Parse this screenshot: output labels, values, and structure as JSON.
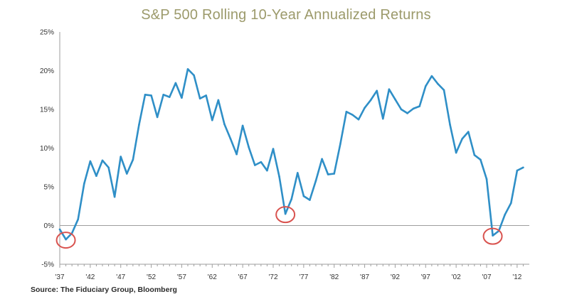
{
  "chart_data": {
    "type": "line",
    "title": "S&P 500 Rolling 10-Year Annualized Returns",
    "source": "Source: The Fiduciary Group, Bloomberg",
    "ylim": [
      -5,
      25
    ],
    "xlim": [
      1937,
      2014
    ],
    "y_ticks": [
      "25%",
      "20%",
      "15%",
      "10%",
      "5%",
      "0%",
      "-5%"
    ],
    "y_tick_values": [
      25,
      20,
      15,
      10,
      5,
      0,
      -5
    ],
    "x_ticks": [
      "'37",
      "'42",
      "'47",
      "'52",
      "'57",
      "'62",
      "'67",
      "'72",
      "'77",
      "'82",
      "'87",
      "'92",
      "'97",
      "'02",
      "'07",
      "'12"
    ],
    "x_tick_values": [
      1937,
      1942,
      1947,
      1952,
      1957,
      1962,
      1967,
      1972,
      1977,
      1982,
      1987,
      1992,
      1997,
      2002,
      2007,
      2012
    ],
    "grid": false,
    "line_color": "#2f8fc7",
    "highlight_color": "#d9534f",
    "series": [
      {
        "x": [
          1937,
          1938,
          1939,
          1940,
          1941,
          1942,
          1943,
          1944,
          1945,
          1946,
          1947,
          1948,
          1949,
          1950,
          1951,
          1952,
          1953,
          1954,
          1955,
          1956,
          1957,
          1958,
          1959,
          1960,
          1961,
          1962,
          1963,
          1964,
          1965,
          1966,
          1967,
          1968,
          1969,
          1970,
          1971,
          1972,
          1973,
          1974,
          1975,
          1976,
          1977,
          1978,
          1979,
          1980,
          1981,
          1982,
          1983,
          1984,
          1985,
          1986,
          1987,
          1988,
          1989,
          1990,
          1991,
          1992,
          1993,
          1994,
          1995,
          1996,
          1997,
          1998,
          1999,
          2000,
          2001,
          2002,
          2003,
          2004,
          2005,
          2006,
          2007,
          2008,
          2009,
          2010,
          2011,
          2012,
          2013
        ],
        "values": [
          -0.5,
          -1.8,
          -1.0,
          0.8,
          5.4,
          8.3,
          6.4,
          8.4,
          7.5,
          3.7,
          8.9,
          6.7,
          8.5,
          13.0,
          16.9,
          16.8,
          14.0,
          16.9,
          16.6,
          18.4,
          16.5,
          20.2,
          19.4,
          16.4,
          16.8,
          13.6,
          16.2,
          13.1,
          11.2,
          9.2,
          12.9,
          10.1,
          7.8,
          8.2,
          7.1,
          9.9,
          6.3,
          1.5,
          3.4,
          6.8,
          3.8,
          3.3,
          5.8,
          8.6,
          6.6,
          6.7,
          10.5,
          14.7,
          14.3,
          13.7,
          15.2,
          16.2,
          17.4,
          13.8,
          17.6,
          16.3,
          15.0,
          14.5,
          15.1,
          15.4,
          18.0,
          19.3,
          18.3,
          17.5,
          13.0,
          9.4,
          11.2,
          12.1,
          9.1,
          8.5,
          6.0,
          -1.3,
          -0.7,
          1.4,
          2.9,
          7.1,
          7.5
        ]
      }
    ],
    "highlights": [
      {
        "x": 1938,
        "y": -1.8
      },
      {
        "x": 1974,
        "y": 1.5
      },
      {
        "x": 2008,
        "y": -1.3
      }
    ]
  }
}
